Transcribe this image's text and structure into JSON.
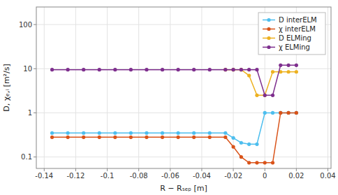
{
  "chart_data": {
    "type": "line",
    "xlabel": "R − Rₛₑₚ [m]",
    "ylabel": "D, χₑ,ᵢ [m²/s]",
    "log": "y",
    "xlim": [
      -0.145,
      0.042
    ],
    "ylim": [
      0.055,
      250
    ],
    "xticks": [
      -0.14,
      -0.12,
      -0.1,
      -0.08,
      -0.06,
      -0.04,
      -0.02,
      0,
      0.02,
      0.04
    ],
    "yticks": [
      0.1,
      1,
      10,
      100
    ],
    "grid": true,
    "legend": "upper right",
    "marker": "circle",
    "line_style": "solid",
    "series": [
      {
        "name": "D interELM",
        "color": "#4DBEEE",
        "x": [
          -0.135,
          -0.125,
          -0.115,
          -0.105,
          -0.095,
          -0.085,
          -0.075,
          -0.065,
          -0.055,
          -0.045,
          -0.035,
          -0.025,
          -0.02,
          -0.015,
          -0.01,
          -0.005,
          0.0,
          0.005,
          0.01,
          0.015,
          0.02
        ],
        "values": [
          0.35,
          0.35,
          0.35,
          0.35,
          0.35,
          0.35,
          0.35,
          0.35,
          0.35,
          0.35,
          0.35,
          0.35,
          0.27,
          0.21,
          0.195,
          0.195,
          1.0,
          1.0,
          1.0,
          1.0,
          1.0
        ]
      },
      {
        "name": "χ interELM",
        "color": "#D95319",
        "x": [
          -0.135,
          -0.125,
          -0.115,
          -0.105,
          -0.095,
          -0.085,
          -0.075,
          -0.065,
          -0.055,
          -0.045,
          -0.035,
          -0.025,
          -0.02,
          -0.015,
          -0.01,
          -0.005,
          0.0,
          0.005,
          0.01,
          0.015,
          0.02
        ],
        "values": [
          0.28,
          0.28,
          0.28,
          0.28,
          0.28,
          0.28,
          0.28,
          0.28,
          0.28,
          0.28,
          0.28,
          0.28,
          0.17,
          0.1,
          0.074,
          0.074,
          0.074,
          0.074,
          1.0,
          1.0,
          1.0
        ]
      },
      {
        "name": "D ELMing",
        "color": "#EDB120",
        "x": [
          -0.025,
          -0.02,
          -0.015,
          -0.01,
          -0.005,
          0.0,
          0.005,
          0.01,
          0.015,
          0.02
        ],
        "values": [
          9.5,
          9.5,
          9.5,
          7.0,
          2.5,
          2.5,
          8.5,
          8.5,
          8.5,
          8.5
        ]
      },
      {
        "name": "χ ELMing",
        "color": "#7E2F8E",
        "x": [
          -0.135,
          -0.125,
          -0.115,
          -0.105,
          -0.095,
          -0.085,
          -0.075,
          -0.065,
          -0.055,
          -0.045,
          -0.035,
          -0.025,
          -0.02,
          -0.015,
          -0.01,
          -0.005,
          0.0,
          0.005,
          0.01,
          0.015,
          0.02
        ],
        "values": [
          9.5,
          9.5,
          9.5,
          9.5,
          9.5,
          9.5,
          9.5,
          9.5,
          9.5,
          9.5,
          9.5,
          9.5,
          9.5,
          9.5,
          9.5,
          9.5,
          2.5,
          2.5,
          12.0,
          12.0,
          12.0
        ]
      }
    ]
  }
}
